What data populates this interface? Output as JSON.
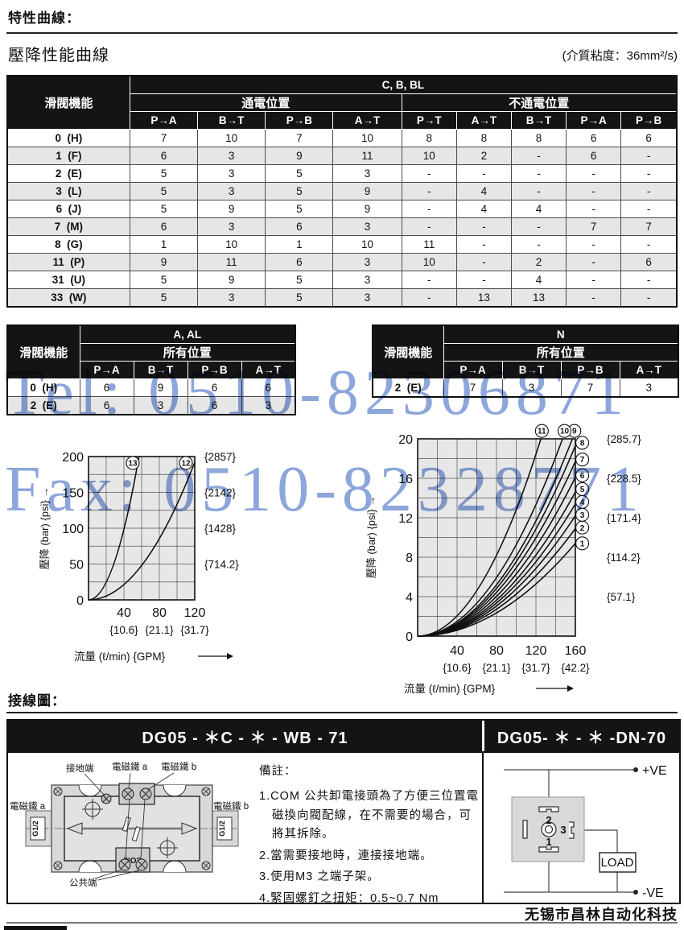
{
  "page": {
    "section1_title": "特性曲線：",
    "subsection_title": "壓降性能曲線",
    "viscosity_note": "(介質粘度：36mm²/s)",
    "section2_title": "接線圖：",
    "footer_company": "无锡市昌林自动化科技"
  },
  "watermark": {
    "line1": "Tel: 0510-82306871",
    "line2": "Fax: 0510-82328771",
    "color": "#7996d5"
  },
  "main_table": {
    "spool_header": "滑閥機能",
    "group": "C, B, BL",
    "energized": "通電位置",
    "deenergized": "不通電位置",
    "energized_cols": [
      "P→A",
      "B→T",
      "P→B",
      "A→T"
    ],
    "deenergized_cols": [
      "P→T",
      "A→T",
      "B→T",
      "P→A",
      "P→B"
    ],
    "rows": [
      {
        "label": "0  (H)",
        "values": [
          "7",
          "10",
          "7",
          "10",
          "8",
          "8",
          "8",
          "6",
          "6"
        ]
      },
      {
        "label": "1  (F)",
        "values": [
          "6",
          "3",
          "9",
          "11",
          "10",
          "2",
          "-",
          "6",
          "-"
        ]
      },
      {
        "label": "2  (E)",
        "values": [
          "5",
          "3",
          "5",
          "3",
          "-",
          "-",
          "-",
          "-",
          "-"
        ]
      },
      {
        "label": "3  (L)",
        "values": [
          "5",
          "3",
          "5",
          "9",
          "-",
          "4",
          "-",
          "-",
          "-"
        ]
      },
      {
        "label": "6  (J)",
        "values": [
          "5",
          "9",
          "5",
          "9",
          "-",
          "4",
          "4",
          "-",
          "-"
        ]
      },
      {
        "label": "7  (M)",
        "values": [
          "6",
          "3",
          "6",
          "3",
          "-",
          "-",
          "-",
          "7",
          "7"
        ]
      },
      {
        "label": "8  (G)",
        "values": [
          "1",
          "10",
          "1",
          "10",
          "11",
          "-",
          "-",
          "-",
          "-"
        ]
      },
      {
        "label": "11  (P)",
        "values": [
          "9",
          "11",
          "6",
          "3",
          "10",
          "-",
          "2",
          "-",
          "6"
        ]
      },
      {
        "label": "31  (U)",
        "values": [
          "5",
          "9",
          "5",
          "3",
          "-",
          "-",
          "4",
          "-",
          "-"
        ]
      },
      {
        "label": "33  (W)",
        "values": [
          "5",
          "3",
          "5",
          "3",
          "-",
          "13",
          "13",
          "-",
          "-"
        ]
      }
    ]
  },
  "table_aal": {
    "spool_header": "滑閥機能",
    "group": "A, AL",
    "sub": "所有位置",
    "cols": [
      "P→A",
      "B→T",
      "P→B",
      "A→T"
    ],
    "rows": [
      {
        "label": "0  (H)",
        "values": [
          "6",
          "9",
          "6",
          "6"
        ]
      },
      {
        "label": "2  (E)",
        "values": [
          "6",
          "3",
          "6",
          "3"
        ]
      }
    ]
  },
  "table_n": {
    "spool_header": "滑閥機能",
    "group": "N",
    "sub": "所有位置",
    "cols": [
      "P→A",
      "B→T",
      "P→B",
      "A→T"
    ],
    "rows": [
      {
        "label": "2  (E)",
        "values": [
          "7",
          "3",
          "7",
          "3"
        ]
      }
    ]
  },
  "chart_data": [
    {
      "type": "line",
      "ylabel": "壓降 (bar) {psi}",
      "xlabel": "流量 (ℓ/min) {GPM}",
      "xlim": [
        0,
        120
      ],
      "ylim": [
        0,
        200
      ],
      "x_grid_step": 20,
      "y_grid_step": 25,
      "grid": true,
      "plot_bg": "#e7e7e7",
      "x_ticks": [
        40,
        80,
        120
      ],
      "y_ticks": [
        0,
        50,
        100,
        150,
        200
      ],
      "x_gpm": [
        {
          "x": 40,
          "text": "{10.6}"
        },
        {
          "x": 80,
          "text": "{21.1}"
        },
        {
          "x": 120,
          "text": "{31.7}"
        }
      ],
      "y_psi": [
        {
          "y": 50,
          "text": "{714.2}"
        },
        {
          "y": 100,
          "text": "{1428}"
        },
        {
          "y": 150,
          "text": "{2142}"
        },
        {
          "y": 200,
          "text": "{2857}"
        }
      ],
      "series": [
        {
          "name": "13",
          "end": [
            57,
            200
          ],
          "label_at": [
            50,
            191
          ]
        },
        {
          "name": "12",
          "end": [
            120,
            192
          ],
          "label_at": [
            110,
            191
          ]
        }
      ]
    },
    {
      "type": "line",
      "ylabel": "壓降 (bar) {psi}",
      "xlabel": "流量 (ℓ/min) {GPM}",
      "xlim": [
        0,
        160
      ],
      "ylim": [
        0,
        20
      ],
      "x_grid_step": 20,
      "y_grid_step": 2,
      "grid": true,
      "plot_bg": "#e7e7e7",
      "x_ticks": [
        40,
        80,
        120,
        160
      ],
      "y_ticks": [
        0,
        4,
        8,
        12,
        16,
        20
      ],
      "x_gpm": [
        {
          "x": 40,
          "text": "{10.6}"
        },
        {
          "x": 80,
          "text": "{21.1}"
        },
        {
          "x": 120,
          "text": "{31.7}"
        },
        {
          "x": 160,
          "text": "{42.2}"
        }
      ],
      "y_psi": [
        {
          "y": 4,
          "text": "{57.1}"
        },
        {
          "y": 8,
          "text": "{114.2}"
        },
        {
          "y": 12,
          "text": "{171.4}"
        },
        {
          "y": 16,
          "text": "{228.5}"
        },
        {
          "y": 20,
          "text": "{285.7}"
        }
      ],
      "series": [
        {
          "name": "1",
          "end": [
            160,
            9.4
          ],
          "label_at": [
            167,
            9.4
          ]
        },
        {
          "name": "2",
          "end": [
            160,
            10.9
          ],
          "label_at": [
            167,
            11.0
          ]
        },
        {
          "name": "3",
          "end": [
            160,
            12.2
          ],
          "label_at": [
            167,
            12.3
          ]
        },
        {
          "name": "4",
          "end": [
            160,
            13.4
          ],
          "label_at": [
            167,
            13.6
          ]
        },
        {
          "name": "5",
          "end": [
            160,
            14.6
          ],
          "label_at": [
            167,
            14.9
          ]
        },
        {
          "name": "6",
          "end": [
            160,
            16.1
          ],
          "label_at": [
            167,
            16.3
          ]
        },
        {
          "name": "7",
          "end": [
            160,
            17.7
          ],
          "label_at": [
            167,
            17.9
          ]
        },
        {
          "name": "8",
          "end": [
            160,
            19.3
          ],
          "label_at": [
            167,
            19.6
          ]
        },
        {
          "name": "9",
          "end": [
            157,
            20
          ],
          "label_at": [
            159,
            20.8
          ]
        },
        {
          "name": "10",
          "end": [
            147,
            20
          ],
          "label_at": [
            149,
            20.8
          ]
        },
        {
          "name": "11",
          "end": [
            125,
            20
          ],
          "label_at": [
            126,
            20.8
          ]
        }
      ]
    }
  ],
  "wiring": {
    "header_left": "DG05 - ＊C - ＊ - WB - 71",
    "header_right": "DG05- ＊ - ＊ -DN-70",
    "valve": {
      "ground_label": "接地端",
      "sol_a_top": "電磁鐵 a",
      "sol_b_top": "電磁鐵 b",
      "sol_a_side": "電磁鐵 a",
      "sol_b_side": "電磁鐵 b",
      "g12_left": "G1/2",
      "g12_right": "G1/2",
      "com_text": "COM",
      "common_label": "公共端"
    },
    "notes_title": "備註：",
    "notes": [
      "1.COM 公共卸電接頭為了方便三位置電磁換向閥配線，在不需要的場合，可將其拆除。",
      "2.當需要接地時，連接接地端。",
      "3.使用M3 之端子架。",
      "4.緊固螺釘之扭矩：0.5~0.7 Nm"
    ],
    "dn70": {
      "pos": "+VE",
      "neg": "-VE",
      "load": "LOAD",
      "pin1": "1",
      "pin2": "2",
      "pin3": "3"
    }
  }
}
